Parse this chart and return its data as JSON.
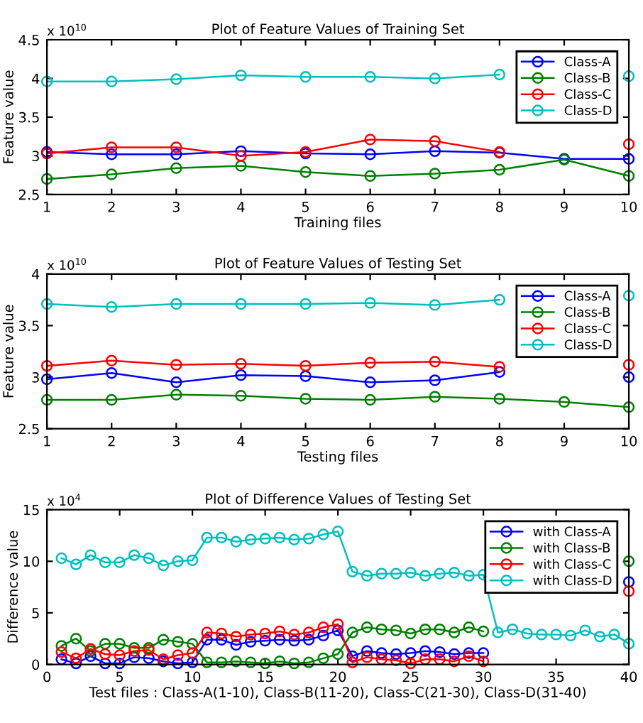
{
  "chart_data": [
    {
      "type": "line",
      "title": "Plot of Feature Values of Training Set",
      "xlabel": "Training files",
      "ylabel": "Feature value",
      "annotations": [
        "x 10$^{10}$"
      ],
      "x": [
        1,
        2,
        3,
        4,
        5,
        6,
        7,
        8,
        9,
        10
      ],
      "xlim": [
        1,
        10
      ],
      "xticks": [
        1,
        2,
        3,
        4,
        5,
        6,
        7,
        8,
        9,
        10
      ],
      "ylim": [
        2.5,
        4.5
      ],
      "yticks": [
        2.5,
        3,
        3.5,
        4,
        4.5
      ],
      "marker": "circle",
      "legend": "top right",
      "grid": false,
      "series": [
        {
          "name": "Class-A",
          "color": "#0000ff",
          "values": [
            3.05,
            3.02,
            3.02,
            3.06,
            3.03,
            3.02,
            3.06,
            3.04,
            2.96,
            2.96
          ]
        },
        {
          "name": "Class-B",
          "color": "#008000",
          "values": [
            2.7,
            2.76,
            2.84,
            2.87,
            2.79,
            2.74,
            2.77,
            2.82,
            2.95,
            2.74
          ]
        },
        {
          "name": "Class-C",
          "color": "#ff0000",
          "values": [
            3.03,
            3.11,
            3.11,
            3.0,
            3.05,
            3.21,
            3.19,
            3.05,
            null,
            3.15
          ]
        },
        {
          "name": "Class-D",
          "color": "#00bfbf",
          "values": [
            3.96,
            3.96,
            3.99,
            4.04,
            4.02,
            4.02,
            4.0,
            4.05,
            null,
            4.03
          ]
        }
      ]
    },
    {
      "type": "line",
      "title": "Plot of Feature Values of Testing Set",
      "xlabel": "Testing files",
      "ylabel": "Feature value",
      "annotations": [
        "x 10$^{10}$"
      ],
      "x": [
        1,
        2,
        3,
        4,
        5,
        6,
        7,
        8,
        9,
        10
      ],
      "xlim": [
        1,
        10
      ],
      "xticks": [
        1,
        2,
        3,
        4,
        5,
        6,
        7,
        8,
        9,
        10
      ],
      "ylim": [
        2.5,
        4
      ],
      "yticks": [
        2.5,
        3,
        3.5,
        4
      ],
      "marker": "circle",
      "legend": "top right",
      "grid": false,
      "series": [
        {
          "name": "Class-A",
          "color": "#0000ff",
          "values": [
            2.98,
            3.04,
            2.95,
            3.02,
            3.01,
            2.95,
            2.97,
            3.05,
            null,
            3.0
          ]
        },
        {
          "name": "Class-B",
          "color": "#008000",
          "values": [
            2.78,
            2.78,
            2.83,
            2.82,
            2.79,
            2.78,
            2.81,
            2.79,
            2.76,
            2.71
          ]
        },
        {
          "name": "Class-C",
          "color": "#ff0000",
          "values": [
            3.11,
            3.16,
            3.12,
            3.13,
            3.11,
            3.14,
            3.15,
            3.1,
            null,
            3.12
          ]
        },
        {
          "name": "Class-D",
          "color": "#00bfbf",
          "values": [
            3.71,
            3.68,
            3.71,
            3.71,
            3.71,
            3.72,
            3.7,
            3.75,
            null,
            3.79
          ]
        }
      ]
    },
    {
      "type": "line",
      "title": "Plot of Difference Values of Testing Set",
      "xlabel": "Test files : Class-A(1-10), Class-B(11-20), Class-C(21-30), Class-D(31-40)",
      "ylabel": "Difference value",
      "annotations": [
        "x 10$^{4}$"
      ],
      "x": [
        1,
        2,
        3,
        4,
        5,
        6,
        7,
        8,
        9,
        10,
        11,
        12,
        13,
        14,
        15,
        16,
        17,
        18,
        19,
        20,
        21,
        22,
        23,
        24,
        25,
        26,
        27,
        28,
        29,
        30,
        31,
        32,
        33,
        34,
        35,
        36,
        37,
        38,
        39,
        40
      ],
      "xlim": [
        0,
        40
      ],
      "xticks": [
        0,
        5,
        10,
        15,
        20,
        25,
        30,
        35,
        40
      ],
      "ylim": [
        0,
        15
      ],
      "yticks": [
        0,
        5,
        10,
        15
      ],
      "marker": "circle",
      "legend": "top right",
      "grid": false,
      "series": [
        {
          "name": "with Class-A",
          "color": "#0000ff",
          "values": [
            0.5,
            0.1,
            0.8,
            0.1,
            0.1,
            0.7,
            0.6,
            0.3,
            0.1,
            0.2,
            2.4,
            2.4,
            1.9,
            2.2,
            2.3,
            2.4,
            2.3,
            2.4,
            2.8,
            3.3,
            0.8,
            1.3,
            1.1,
            1.0,
            1.1,
            1.3,
            1.2,
            1.0,
            1.1,
            1.1,
            null,
            null,
            null,
            null,
            null,
            null,
            null,
            null,
            null,
            8.0
          ]
        },
        {
          "name": "with Class-B",
          "color": "#008000",
          "values": [
            1.8,
            2.5,
            1.3,
            2.0,
            2.0,
            1.6,
            1.6,
            2.4,
            2.2,
            2.0,
            0.2,
            0.2,
            0.3,
            0.2,
            0.1,
            0.3,
            0.1,
            0.2,
            0.6,
            1.0,
            3.1,
            3.6,
            3.4,
            3.3,
            3.0,
            3.4,
            3.4,
            3.1,
            3.6,
            3.2,
            null,
            null,
            null,
            null,
            null,
            null,
            null,
            null,
            null,
            10.0
          ]
        },
        {
          "name": "with Class-C",
          "color": "#ff0000",
          "values": [
            1.2,
            0.6,
            1.5,
            1.0,
            0.9,
            1.3,
            1.4,
            0.5,
            0.9,
            1.1,
            3.1,
            3.0,
            2.7,
            2.9,
            3.0,
            3.2,
            2.9,
            3.1,
            3.6,
            3.9,
            0.2,
            0.7,
            0.5,
            0.4,
            0.1,
            0.5,
            0.5,
            0.3,
            0.8,
            0.3,
            null,
            null,
            null,
            null,
            null,
            null,
            null,
            null,
            null,
            7.1
          ]
        },
        {
          "name": "with Class-D",
          "color": "#00bfbf",
          "values": [
            10.3,
            9.7,
            10.6,
            9.9,
            9.9,
            10.6,
            10.3,
            9.6,
            10.0,
            10.1,
            12.3,
            12.3,
            11.9,
            12.1,
            12.2,
            12.3,
            12.1,
            12.2,
            12.6,
            12.9,
            9.0,
            8.6,
            8.8,
            8.8,
            8.9,
            8.6,
            8.8,
            8.9,
            8.6,
            8.7,
            3.1,
            3.4,
            3.0,
            2.9,
            2.9,
            2.8,
            3.3,
            2.7,
            2.9,
            2.0
          ]
        }
      ]
    }
  ]
}
